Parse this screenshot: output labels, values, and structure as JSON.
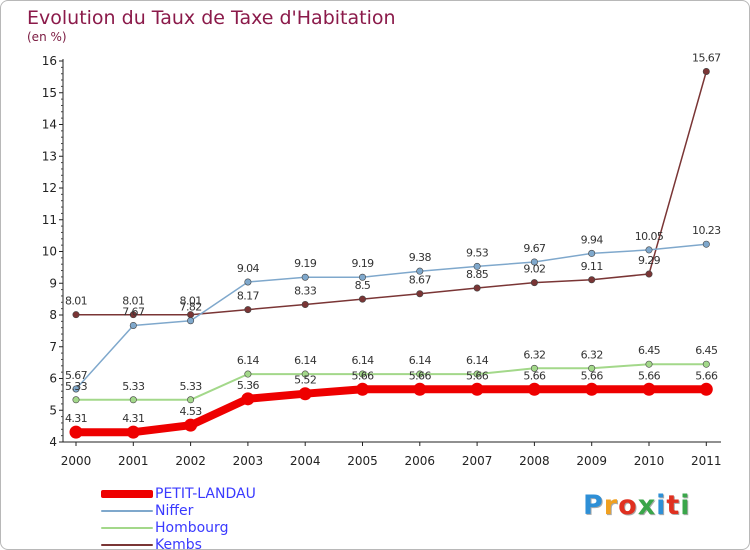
{
  "title": "Evolution du Taux de Taxe d'Habitation",
  "subtitle": "(en %)",
  "logo": {
    "text": "Proxiti",
    "colors": [
      "#2e8fd6",
      "#f0a020",
      "#e03020",
      "#3aa64a",
      "#2e8fd6",
      "#e03020",
      "#3aa64a"
    ]
  },
  "chart_data": {
    "type": "line",
    "x": [
      2000,
      2001,
      2002,
      2003,
      2004,
      2005,
      2006,
      2007,
      2008,
      2009,
      2010,
      2011
    ],
    "ylim": [
      4,
      16
    ],
    "yticks": [
      4,
      5,
      6,
      7,
      8,
      9,
      10,
      11,
      12,
      13,
      14,
      15,
      16
    ],
    "grid": false,
    "legend_position": "bottom-left",
    "series": [
      {
        "name": "PETIT-LANDAU",
        "color": "#ee0000",
        "values": [
          4.31,
          4.31,
          4.53,
          5.36,
          5.52,
          5.66,
          5.66,
          5.66,
          5.66,
          5.66,
          5.66,
          5.66
        ],
        "labels": [
          "4.31",
          "4.31",
          "4.53",
          "5.36",
          "5.52",
          "5.66",
          "5.66",
          "5.66",
          "5.66",
          "5.66",
          "5.66",
          "5.66"
        ]
      },
      {
        "name": "Niffer",
        "color": "#7fa8cc",
        "values": [
          5.67,
          7.67,
          7.82,
          9.04,
          9.19,
          9.19,
          9.38,
          9.53,
          9.67,
          9.94,
          10.05,
          10.23
        ],
        "labels": [
          "5.67",
          "7.67",
          "7.82",
          "9.04",
          "9.19",
          "9.19",
          "9.38",
          "9.53",
          "9.67",
          "9.94",
          "10.05",
          "10.23"
        ]
      },
      {
        "name": "Hombourg",
        "color": "#a3d88a",
        "values": [
          5.33,
          5.33,
          5.33,
          6.14,
          6.14,
          6.14,
          6.14,
          6.14,
          6.32,
          6.32,
          6.45,
          6.45
        ],
        "labels": [
          "5.33",
          "5.33",
          "5.33",
          "6.14",
          "6.14",
          "6.14",
          "6.14",
          "6.14",
          "6.32",
          "6.32",
          "6.45",
          "6.45"
        ]
      },
      {
        "name": "Kembs",
        "color": "#7a3535",
        "values": [
          8.01,
          8.01,
          8.01,
          8.17,
          8.33,
          8.5,
          8.67,
          8.85,
          9.02,
          9.11,
          9.29,
          15.67
        ],
        "labels": [
          "8.01",
          "8.01",
          "8.01",
          "8.17",
          "8.33",
          "8.5",
          "8.67",
          "8.85",
          "9.02",
          "9.11",
          "9.29",
          "15.67"
        ]
      }
    ]
  }
}
